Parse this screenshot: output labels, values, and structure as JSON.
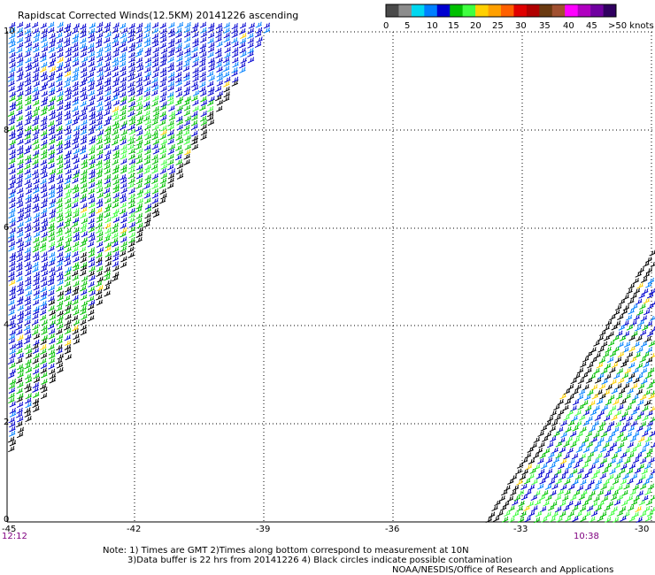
{
  "title": "Rapidscat Corrected Winds(12.5KM) 20141226 ascending",
  "legend": {
    "colors": [
      "#4a4a4a",
      "#8c8c8c",
      "#00d8f0",
      "#0080ff",
      "#0000d0",
      "#00c000",
      "#40ff40",
      "#ffd000",
      "#ffa000",
      "#ff6000",
      "#e00000",
      "#b00000",
      "#6a3a10",
      "#a05030",
      "#ff00ff",
      "#b000c0",
      "#7000a0",
      "#300060"
    ],
    "labels": [
      "0",
      "5",
      "10",
      "15",
      "20",
      "25",
      "30",
      "35",
      "40",
      "45",
      ">50 knots"
    ]
  },
  "x_ticks": [
    "-45",
    "-42",
    "-39",
    "-36",
    "-33",
    "-30"
  ],
  "y_ticks": [
    "0",
    "2",
    "4",
    "6",
    "8",
    "10"
  ],
  "time_left": "12:12",
  "time_right": "10:38",
  "notes": [
    "Note: 1) Times are GMT 2)Times along bottom correspond to measurement at 10N",
    "3)Data buffer is 22 hrs from 20141226 4) Black circles indicate possible contamination",
    "NOAA/NESDIS/Office of Research and Applications"
  ],
  "barb_colors": {
    "blue": "#0000d0",
    "light_blue": "#0080ff",
    "green": "#00c000",
    "light_green": "#40ff40",
    "yellow": "#ffd000",
    "black": "#000000"
  },
  "time_color": "#800080"
}
